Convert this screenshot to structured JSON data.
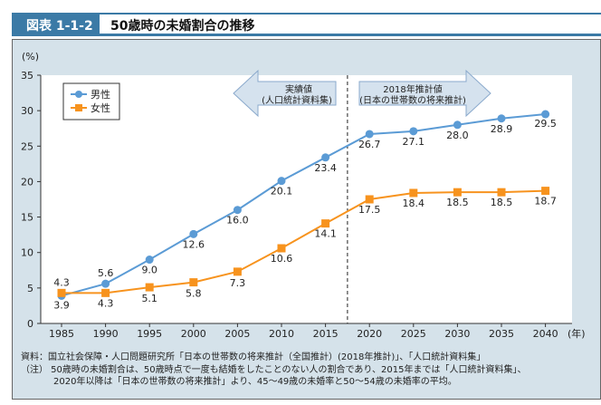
{
  "header": {
    "figure_number": "図表 1-1-2",
    "title": "50歳時の未婚割合の推移"
  },
  "chart_data": {
    "type": "line",
    "ylabel": "(%)",
    "xlabel": "(年)",
    "ylim": [
      0,
      35
    ],
    "yticks": [
      0,
      5,
      10,
      15,
      20,
      25,
      30,
      35
    ],
    "x": [
      "1985",
      "1990",
      "1995",
      "2000",
      "2005",
      "2010",
      "2015",
      "2020",
      "2025",
      "2030",
      "2035",
      "2040"
    ],
    "series": [
      {
        "name": "男性",
        "color": "#5b9bd5",
        "marker": "circle",
        "values": [
          3.9,
          5.6,
          9.0,
          12.6,
          16.0,
          20.1,
          23.4,
          26.7,
          27.1,
          28.0,
          28.9,
          29.5
        ]
      },
      {
        "name": "女性",
        "color": "#f7931e",
        "marker": "square",
        "values": [
          4.3,
          4.3,
          5.1,
          5.8,
          7.3,
          10.6,
          14.1,
          17.5,
          18.4,
          18.5,
          18.5,
          18.7
        ]
      }
    ],
    "legend": "top-left",
    "annotations": {
      "actual": [
        "実績値",
        "(人口統計資料集)"
      ],
      "projection": [
        "2018年推計値",
        "(日本の世帯数の将来推計)"
      ],
      "divider_between": [
        "2015",
        "2020"
      ]
    }
  },
  "notes": {
    "source": "資料：国立社会保障・人口問題研究所「日本の世帯数の将来推計（全国推計）(2018年推計)」、「人口統計資料集」",
    "note1": "（注） 50歳時の未婚割合は、50歳時点で一度も結婚をしたことのない人の割合であり、2015年までは「人口統計資料集」、",
    "note2": "2020年以降は「日本の世帯数の将来推計」より、45～49歳の未婚率と50～54歳の未婚率の平均。"
  }
}
